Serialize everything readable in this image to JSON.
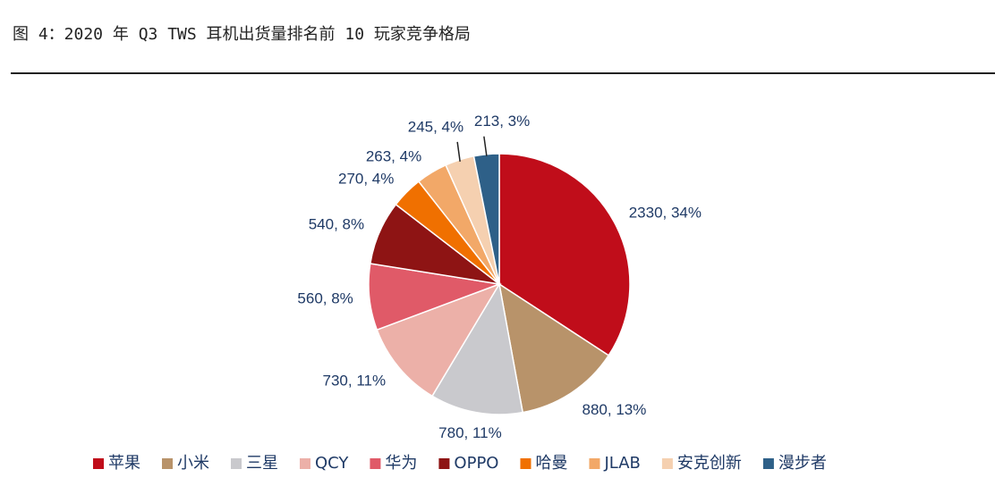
{
  "chart_data": {
    "type": "pie",
    "title": "图 4：2020 年 Q3 TWS 耳机出货量排名前 10 玩家竞争格局",
    "categories": [
      "苹果",
      "小米",
      "三星",
      "QCY",
      "华为",
      "OPPO",
      "哈曼",
      "JLAB",
      "安克创新",
      "漫步者"
    ],
    "values": [
      2330,
      880,
      780,
      730,
      560,
      540,
      270,
      263,
      245,
      213
    ],
    "value_labels": [
      "2330, 34%",
      "880, 13%",
      "780, 11%",
      "730, 11%",
      "560, 8%",
      "540, 8%",
      "270, 4%",
      "263, 4%",
      "245, 4%",
      "213, 3%"
    ],
    "colors": [
      "#c00d1a",
      "#b8936a",
      "#c9c9cd",
      "#ecb0a8",
      "#e05a68",
      "#8e1414",
      "#f07000",
      "#f2a868",
      "#f5d0b0",
      "#2e6088"
    ],
    "legend": "bottom"
  }
}
